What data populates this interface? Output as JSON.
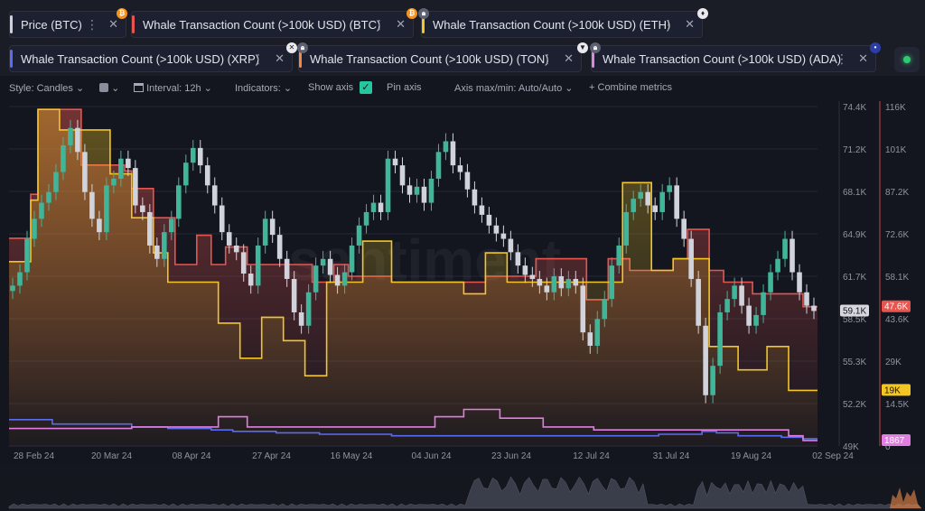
{
  "tabs": [
    {
      "label": "Price (BTC)",
      "color": "#cfd2da",
      "badge": "btc-icon",
      "badge_color": "#f7931a"
    },
    {
      "label": "Whale Transaction Count (>100k USD) (BTC)",
      "color": "#e8554e",
      "badge": "btc-icon",
      "badge_color": "#f7931a"
    },
    {
      "label": "Whale Transaction Count (>100k USD) (ETH)",
      "color": "#f3c623",
      "badge": "eth-icon",
      "badge_color": "#ffffff"
    },
    {
      "label": "Whale Transaction Count (>100k USD) (XRP)",
      "color": "#5a6cf0",
      "badge": "lock-icon",
      "badge_color": "#8a8e9c"
    },
    {
      "label": "Whale Transaction Count (>100k USD) (TON)",
      "color": "#f08a4b",
      "badge": "lock-icon",
      "badge_color": "#8a8e9c"
    },
    {
      "label": "Whale Transaction Count (>100k USD) (ADA)",
      "color": "#d98ad9",
      "badge": "lock-icon",
      "badge_color": "#8a8e9c"
    }
  ],
  "toolbar": {
    "style": "Style: Candles",
    "interval": "Interval: 12h",
    "indicators": "Indicators:",
    "show_axis": "Show axis",
    "pin_axis": "Pin axis",
    "axis_maxmin": "Axis max/min: Auto/Auto",
    "combine": "Combine metrics"
  },
  "watermark": "santiment",
  "chart_data": {
    "type": "line",
    "x_ticks": [
      "28 Feb 24",
      "20 Mar 24",
      "08 Apr 24",
      "27 Apr 24",
      "16 May 24",
      "04 Jun 24",
      "23 Jun 24",
      "12 Jul 24",
      "31 Jul 24",
      "19 Aug 24",
      "02 Sep 24"
    ],
    "y_price_ticks": [
      "74.4K",
      "71.2K",
      "68.1K",
      "64.9K",
      "61.7K",
      "58.5K",
      "55.3K",
      "52.2K",
      "49K"
    ],
    "y_count_ticks": [
      "116K",
      "101K",
      "87.2K",
      "72.6K",
      "58.1K",
      "43.6K",
      "29K",
      "14.5K",
      "0"
    ],
    "y_price_range": [
      49000,
      74400
    ],
    "y_count_range": [
      0,
      116000
    ],
    "badges": [
      {
        "text": "59.1K",
        "value": 59100,
        "axis": "price",
        "color": "#d6d8de",
        "text_color": "#14161f"
      },
      {
        "text": "47.6K",
        "value": 47600,
        "axis": "count",
        "color": "#e8554e",
        "text_color": "#ffffff"
      },
      {
        "text": "19K",
        "value": 19000,
        "axis": "count",
        "color": "#f3c623",
        "text_color": "#14161f"
      },
      {
        "text": "1867",
        "value": 1867,
        "axis": "count",
        "color": "#e27ee2",
        "text_color": "#ffffff"
      }
    ],
    "series": [
      {
        "name": "Price (BTC)",
        "color": "#3fb59a",
        "values": [
          61000,
          62000,
          64500,
          66000,
          67200,
          68000,
          69500,
          71500,
          72800,
          71000,
          68000,
          66000,
          65000,
          68500,
          69000,
          70500,
          69800,
          67000,
          66500,
          64000,
          63000,
          65000,
          66000,
          68500,
          70200,
          71300,
          70000,
          68500,
          67000,
          65000,
          64000,
          63500,
          61900,
          61000,
          64000,
          66000,
          64800,
          63000,
          61500,
          59000,
          58000,
          60500,
          62500,
          63000,
          61800,
          61000,
          62000,
          64000,
          65500,
          66500,
          67200,
          66500,
          70500,
          70000,
          68500,
          67800,
          68400,
          67200,
          69000,
          71000,
          71800,
          70000,
          69500,
          68200,
          67000,
          66300,
          65500,
          64900,
          64500,
          63500,
          62500,
          61800,
          61500,
          61000,
          60500,
          61700,
          60800,
          61500,
          61000,
          57500,
          56500,
          58500,
          60000,
          62500,
          64000,
          66500,
          67500,
          68000,
          67000,
          66500,
          68000,
          68500,
          66000,
          64500,
          61500,
          58000,
          52800,
          55000,
          59000,
          60000,
          61000,
          59500,
          58000,
          58800,
          60500,
          62000,
          63000,
          64500,
          62000,
          60500,
          59500,
          59100
        ]
      },
      {
        "name": "Whale Transaction Count (>100k USD) (BTC)",
        "color": "#e8554e",
        "values": [
          71000,
          71000,
          71000,
          86000,
          115000,
          115000,
          115000,
          115000,
          115000,
          115000,
          96000,
          96000,
          96000,
          96000,
          96000,
          96000,
          94000,
          88000,
          88000,
          88000,
          78000,
          78000,
          78000,
          62000,
          62000,
          62000,
          72000,
          72000,
          62000,
          62000,
          68000,
          68000,
          68000,
          62000,
          62000,
          62000,
          62000,
          62000,
          62000,
          62000,
          62000,
          62000,
          56000,
          56000,
          56000,
          62000,
          62000,
          58000,
          58000,
          58000,
          58000,
          58000,
          58000,
          56000,
          56000,
          56000,
          56000,
          56000,
          56000,
          56000,
          56000,
          56000,
          56000,
          56000,
          56000,
          56000,
          58000,
          58000,
          58000,
          58000,
          58000,
          58000,
          58000,
          64000,
          64000,
          64000,
          64000,
          64000,
          64000,
          64000,
          50000,
          50000,
          50000,
          64000,
          64000,
          64000,
          60000,
          60000,
          60000,
          60000,
          60000,
          60000,
          64000,
          64000,
          74000,
          74000,
          74000,
          60000,
          60000,
          56000,
          56000,
          56000,
          56000,
          52000,
          52000,
          52000,
          52000,
          52000,
          52000,
          52000,
          47600,
          47600
        ]
      },
      {
        "name": "Whale Transaction Count (>100k USD) (ETH)",
        "color": "#f3c623",
        "values": [
          63000,
          63000,
          63000,
          84000,
          115000,
          115000,
          115000,
          108000,
          108000,
          108000,
          108000,
          108000,
          108000,
          108000,
          93000,
          93000,
          93000,
          78000,
          78000,
          78000,
          66000,
          66000,
          56000,
          56000,
          56000,
          56000,
          56000,
          56000,
          56000,
          42000,
          42000,
          42000,
          30000,
          30000,
          30000,
          44000,
          44000,
          44000,
          36000,
          36000,
          36000,
          24000,
          24000,
          24000,
          56000,
          56000,
          56000,
          56000,
          56000,
          70000,
          70000,
          70000,
          70000,
          56000,
          56000,
          56000,
          56000,
          56000,
          56000,
          56000,
          56000,
          56000,
          56000,
          52000,
          52000,
          52000,
          66000,
          66000,
          66000,
          56000,
          56000,
          56000,
          56000,
          56000,
          56000,
          56000,
          56000,
          56000,
          56000,
          56000,
          56000,
          56000,
          56000,
          56000,
          56000,
          90000,
          90000,
          90000,
          90000,
          60000,
          60000,
          60000,
          64000,
          64000,
          64000,
          64000,
          64000,
          34000,
          34000,
          34000,
          34000,
          26000,
          26000,
          26000,
          26000,
          34000,
          34000,
          34000,
          19000,
          19000,
          19000,
          19000
        ]
      },
      {
        "name": "Whale Transaction Count (>100k USD) (XRP)",
        "color": "#5a6cf0",
        "values": [
          9000,
          9000,
          9000,
          9000,
          9000,
          9000,
          7500,
          7500,
          7500,
          7500,
          7500,
          7500,
          7500,
          7500,
          7500,
          7500,
          7500,
          6500,
          6500,
          6500,
          6500,
          6500,
          6000,
          6000,
          6000,
          6000,
          6000,
          6000,
          5500,
          5500,
          5500,
          5000,
          5000,
          5000,
          5000,
          5000,
          5000,
          4500,
          4500,
          4500,
          4500,
          4500,
          4500,
          4000,
          4000,
          4000,
          4000,
          4000,
          4000,
          4000,
          4000,
          4000,
          4000,
          3500,
          3500,
          3500,
          3500,
          3500,
          3500,
          3500,
          3500,
          3500,
          3500,
          3500,
          3500,
          3500,
          3500,
          3500,
          3500,
          3500,
          3500,
          3500,
          3500,
          3500,
          3500,
          3500,
          3500,
          3500,
          3500,
          3500,
          3500,
          3500,
          3500,
          3500,
          3500,
          3500,
          3500,
          3500,
          3500,
          3500,
          4000,
          4000,
          4000,
          4000,
          4000,
          4000,
          5000,
          5000,
          4500,
          4500,
          4500,
          3500,
          3500,
          3500,
          3500,
          3500,
          3500,
          3000,
          3000,
          3000,
          2500,
          2500
        ]
      },
      {
        "name": "Whale Transaction Count (>100k USD) (ADA)",
        "color": "#e27ee2",
        "values": [
          6000,
          6000,
          6000,
          6000,
          6000,
          6000,
          6000,
          6000,
          6000,
          6000,
          6000,
          6000,
          6000,
          6000,
          6000,
          6000,
          6000,
          6500,
          6500,
          6500,
          6500,
          6500,
          6500,
          6500,
          6500,
          6500,
          6500,
          6500,
          6500,
          10000,
          10000,
          10000,
          10000,
          6500,
          6500,
          6500,
          6500,
          6500,
          6500,
          6500,
          6500,
          6500,
          6500,
          6500,
          6500,
          6500,
          6500,
          6500,
          6500,
          6500,
          6500,
          6500,
          6500,
          6500,
          6500,
          6500,
          6500,
          6500,
          6500,
          10000,
          10000,
          10000,
          10000,
          12500,
          12500,
          12500,
          12500,
          12500,
          9500,
          9500,
          9500,
          9500,
          9500,
          9500,
          6500,
          6500,
          6500,
          6500,
          6500,
          6500,
          6500,
          5500,
          5500,
          5500,
          5500,
          5500,
          5500,
          5500,
          5500,
          5500,
          5500,
          5500,
          5500,
          5500,
          5500,
          5500,
          5500,
          5500,
          5500,
          5500,
          5500,
          5500,
          5500,
          5500,
          5500,
          5500,
          5500,
          5500,
          3500,
          3500,
          1867,
          1867
        ]
      }
    ]
  }
}
